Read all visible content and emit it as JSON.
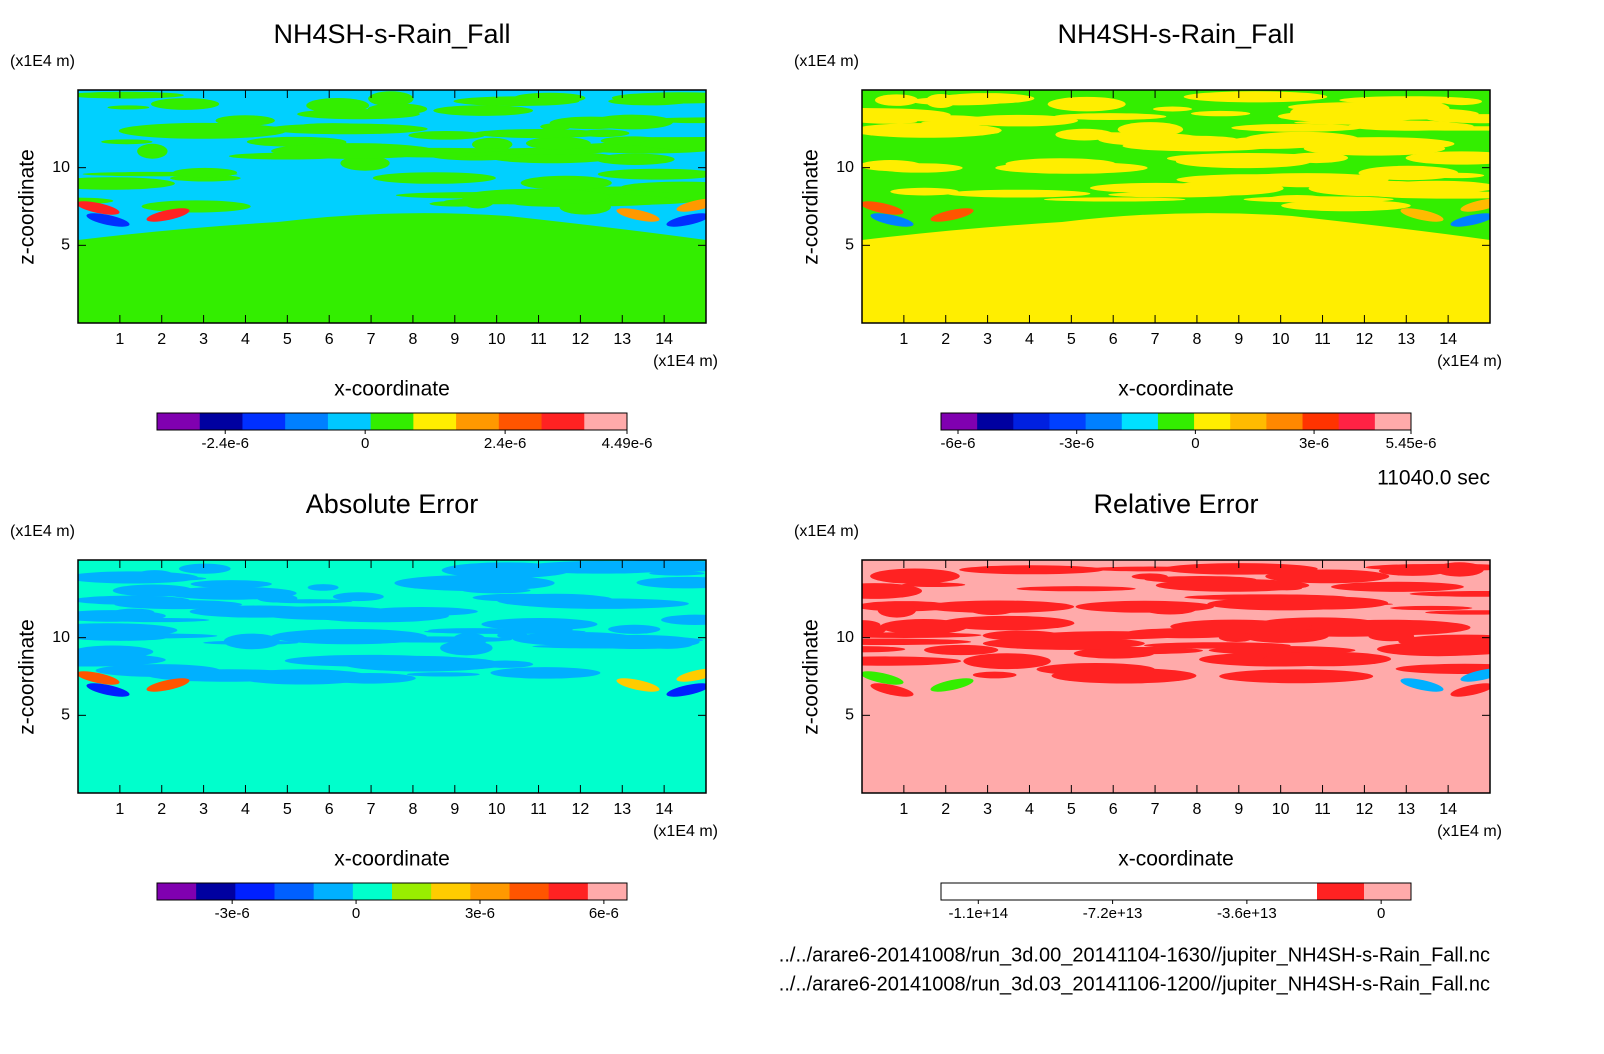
{
  "chart_data": [
    {
      "type": "contour",
      "title": "NH4SH-s-Rain_Fall",
      "xlabel": "x-coordinate",
      "ylabel": "z-coordinate",
      "xunit": "(x1E4 m)",
      "yunit": "(x1E4 m)",
      "xlim": [
        0,
        15
      ],
      "ylim": [
        0,
        15
      ],
      "xticks": [
        1,
        2,
        3,
        4,
        5,
        6,
        7,
        8,
        9,
        10,
        11,
        12,
        13,
        14
      ],
      "yticks": [
        5,
        10
      ],
      "colorbar": {
        "lim": [
          -3.57e-06,
          4.49e-06
        ],
        "colors": [
          "#8000b0",
          "#0000a0",
          "#0030ff",
          "#0080ff",
          "#00c8ff",
          "#33ee00",
          "#ffee00",
          "#ff9900",
          "#ff5500",
          "#ff2222",
          "#ffaaaa"
        ],
        "ticks": [
          {
            "value": -2.4e-06,
            "label": "-2.4e-6"
          },
          0,
          {
            "value": 2.4e-06,
            "label": "2.4e-6"
          },
          {
            "value": 4.49e-06,
            "label": "4.49e-6"
          }
        ]
      }
    },
    {
      "type": "contour",
      "title": "NH4SH-s-Rain_Fall",
      "xlabel": "x-coordinate",
      "ylabel": "z-coordinate",
      "xunit": "(x1E4 m)",
      "yunit": "(x1E4 m)",
      "xlim": [
        0,
        15
      ],
      "ylim": [
        0,
        15
      ],
      "xticks": [
        1,
        2,
        3,
        4,
        5,
        6,
        7,
        8,
        9,
        10,
        11,
        12,
        13,
        14
      ],
      "yticks": [
        5,
        10
      ],
      "colorbar": {
        "lim": [
          -6.43e-06,
          5.45e-06
        ],
        "colors": [
          "#8000b0",
          "#0000a0",
          "#0020e0",
          "#0040ff",
          "#0080ff",
          "#00e0ff",
          "#33ee00",
          "#ffee00",
          "#ffbb00",
          "#ff8800",
          "#ff3300",
          "#ff2244",
          "#ffaaaa"
        ],
        "ticks": [
          {
            "value": -6e-06,
            "label": "-6e-6"
          },
          {
            "value": -3e-06,
            "label": "-3e-6"
          },
          0,
          {
            "value": 3e-06,
            "label": "3e-6"
          },
          {
            "value": 5.45e-06,
            "label": "5.45e-6"
          }
        ]
      }
    },
    {
      "type": "contour",
      "title": "Absolute Error",
      "xlabel": "x-coordinate",
      "ylabel": "z-coordinate",
      "xunit": "(x1E4 m)",
      "yunit": "(x1E4 m)",
      "xlim": [
        0,
        15
      ],
      "ylim": [
        0,
        15
      ],
      "xticks": [
        1,
        2,
        3,
        4,
        5,
        6,
        7,
        8,
        9,
        10,
        11,
        12,
        13,
        14
      ],
      "yticks": [
        5,
        10
      ],
      "colorbar": {
        "lim": [
          -4.82e-06,
          6.56e-06
        ],
        "colors": [
          "#8000b0",
          "#0000a0",
          "#0020ff",
          "#0060ff",
          "#00b0ff",
          "#00ffcc",
          "#99ee00",
          "#ffcc00",
          "#ff9900",
          "#ff5500",
          "#ff2222",
          "#ffaaaa"
        ],
        "ticks": [
          {
            "value": -3e-06,
            "label": "-3e-6"
          },
          0,
          {
            "value": 3e-06,
            "label": "3e-6"
          },
          {
            "value": 6e-06,
            "label": "6e-6"
          }
        ]
      }
    },
    {
      "type": "contour",
      "title": "Relative Error",
      "xlabel": "x-coordinate",
      "ylabel": "z-coordinate",
      "xunit": "(x1E4 m)",
      "yunit": "(x1E4 m)",
      "xlim": [
        0,
        15
      ],
      "ylim": [
        0,
        15
      ],
      "xticks": [
        1,
        2,
        3,
        4,
        5,
        6,
        7,
        8,
        9,
        10,
        11,
        12,
        13,
        14
      ],
      "yticks": [
        5,
        10
      ],
      "colorbar": {
        "lim": [
          -118000000000000.0,
          8000000000000.0
        ],
        "colors": [
          "#ffffff",
          "#ffffff",
          "#ffffff",
          "#ffffff",
          "#ffffff",
          "#ffffff",
          "#ffffff",
          "#ffffff",
          "#ff2222",
          "#ffaaaa"
        ],
        "ticks": [
          {
            "value": -108000000000000.0,
            "label": "-1.1e+14"
          },
          {
            "value": -72000000000000.0,
            "label": "-7.2e+13"
          },
          {
            "value": -36000000000000.0,
            "label": "-3.6e+13"
          },
          0
        ]
      }
    }
  ],
  "footer": {
    "time": "11040.0 sec",
    "files": [
      "../../arare6-20141008/run_3d.00_20141104-1630//jupiter_NH4SH-s-Rain_Fall.nc",
      "../../arare6-20141008/run_3d.03_20141106-1200//jupiter_NH4SH-s-Rain_Fall.nc"
    ]
  }
}
